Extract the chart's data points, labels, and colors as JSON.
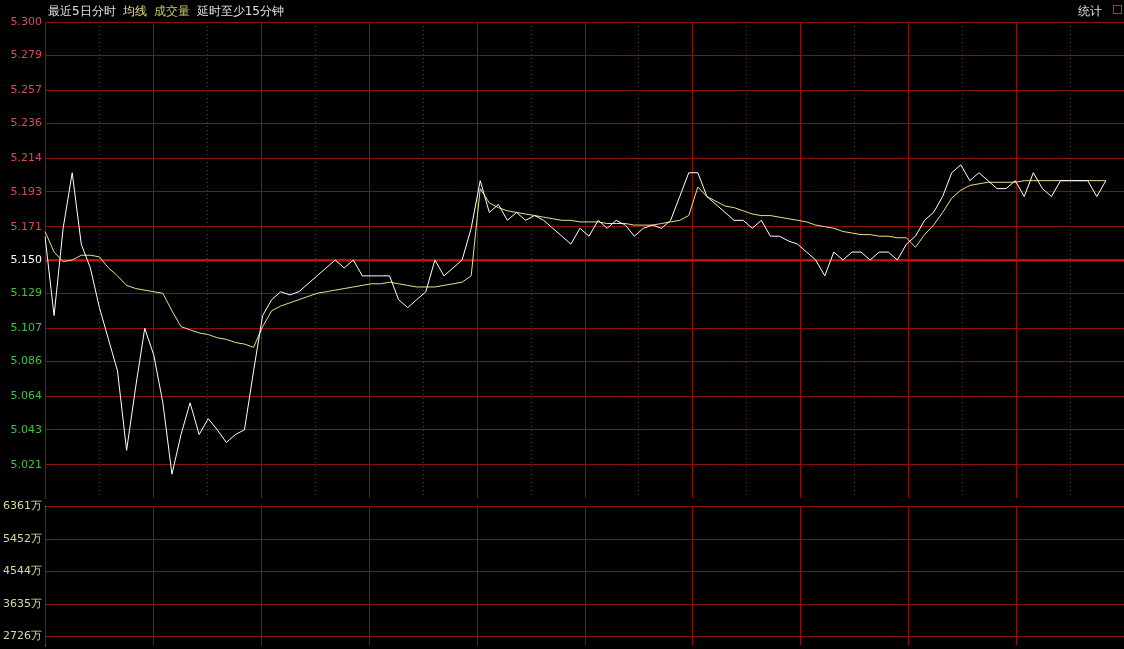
{
  "chart_data": [
    {
      "type": "line",
      "title": "最近5日分时",
      "categories": [
        null,
        null,
        null,
        null,
        null,
        null,
        null,
        null,
        null,
        null,
        null,
        null,
        null,
        null,
        null,
        null,
        null,
        null,
        null,
        null,
        null,
        null,
        null,
        null,
        null,
        null,
        null,
        null,
        null,
        null,
        null,
        null,
        null,
        null,
        null,
        null,
        null,
        null,
        null,
        null,
        null,
        null,
        null,
        null,
        null,
        null,
        null,
        null,
        null,
        null,
        null,
        null,
        null,
        null,
        null,
        null,
        null,
        null,
        null,
        null,
        null,
        null,
        null,
        null,
        null,
        null,
        null,
        null,
        null,
        null,
        null,
        null,
        null,
        null,
        null,
        null,
        null,
        null,
        null,
        null,
        null,
        null,
        null,
        null,
        null,
        null,
        null,
        null,
        null,
        null,
        null,
        null,
        null,
        null,
        null,
        null,
        null,
        null,
        null,
        null,
        null,
        null,
        null,
        null,
        null,
        null,
        null,
        null,
        null,
        null,
        null,
        null,
        null,
        null,
        null,
        null,
        null,
        null,
        null,
        null
      ],
      "series": [
        {
          "color": "#ffffff",
          "values": [
            5.165,
            5.115,
            5.17,
            5.205,
            5.16,
            5.145,
            5.12,
            5.1,
            5.08,
            5.03,
            5.07,
            5.107,
            5.09,
            5.06,
            5.015,
            5.04,
            5.06,
            5.04,
            5.05,
            5.043,
            5.035,
            5.04,
            5.043,
            5.08,
            5.115,
            5.125,
            5.13,
            5.128,
            5.13,
            5.135,
            5.14,
            5.145,
            5.15,
            5.145,
            5.15,
            5.14,
            5.14,
            5.14,
            5.14,
            5.125,
            5.12,
            5.125,
            5.13,
            5.15,
            5.14,
            5.145,
            5.15,
            5.17,
            5.2,
            5.18,
            5.185,
            5.175,
            5.18,
            5.175,
            5.178,
            5.175,
            5.17,
            5.165,
            5.16,
            5.17,
            5.165,
            5.175,
            5.17,
            5.175,
            5.172,
            5.165,
            5.17,
            5.172,
            5.17,
            5.175,
            5.19,
            5.205,
            5.205,
            5.19,
            5.185,
            5.18,
            5.175,
            5.175,
            5.17,
            5.175,
            5.165,
            5.165,
            5.162,
            5.16,
            5.155,
            5.15,
            5.14,
            5.155,
            5.15,
            5.155,
            5.155,
            5.15,
            5.155,
            5.155,
            5.15,
            5.16,
            5.165,
            5.175,
            5.18,
            5.19,
            5.205,
            5.21,
            5.2,
            5.205,
            5.2,
            5.195,
            5.195,
            5.2,
            5.19,
            5.205,
            5.195,
            5.19,
            5.2,
            5.2,
            5.2,
            5.2,
            5.19,
            5.2,
            null,
            null
          ]
        },
        {
          "name": "均线",
          "color": "#e8e08a",
          "values": [
            5.168,
            5.155,
            5.149,
            5.15,
            5.153,
            5.153,
            5.152,
            5.145,
            5.14,
            5.134,
            5.132,
            5.131,
            5.13,
            5.129,
            5.118,
            5.108,
            5.106,
            5.104,
            5.103,
            5.101,
            5.1,
            5.098,
            5.097,
            5.095,
            5.108,
            5.118,
            5.121,
            5.123,
            5.125,
            5.127,
            5.129,
            5.13,
            5.131,
            5.132,
            5.133,
            5.134,
            5.135,
            5.135,
            5.136,
            5.135,
            5.134,
            5.133,
            5.133,
            5.133,
            5.134,
            5.135,
            5.136,
            5.14,
            5.195,
            5.186,
            5.183,
            5.181,
            5.18,
            5.179,
            5.178,
            5.177,
            5.176,
            5.175,
            5.175,
            5.174,
            5.174,
            5.174,
            5.173,
            5.173,
            5.173,
            5.172,
            5.172,
            5.172,
            5.173,
            5.174,
            5.175,
            5.178,
            5.196,
            5.19,
            5.187,
            5.184,
            5.183,
            5.181,
            5.179,
            5.178,
            5.178,
            5.177,
            5.176,
            5.175,
            5.174,
            5.172,
            5.171,
            5.17,
            5.168,
            5.167,
            5.166,
            5.166,
            5.165,
            5.165,
            5.164,
            5.164,
            5.158,
            5.166,
            5.172,
            5.18,
            5.189,
            5.194,
            5.197,
            5.198,
            5.199,
            5.199,
            5.199,
            5.199,
            5.2,
            5.2,
            5.2,
            5.2,
            5.2,
            5.2,
            5.2,
            5.2,
            5.2,
            5.2,
            null,
            null
          ]
        }
      ],
      "ylim": [
        5.0,
        5.3
      ],
      "yticks": [
        5.021,
        5.043,
        5.064,
        5.086,
        5.107,
        5.129,
        {
          "value": 5.15,
          "label": "5.150"
        },
        5.171,
        5.193,
        5.214,
        5.236,
        5.257,
        5.279,
        {
          "value": 5.3,
          "label": "5.300"
        }
      ],
      "ref_lines": [
        {
          "axis": "y",
          "value": 5.15,
          "color": "#d01010"
        }
      ],
      "grid": true,
      "annotations": [
        "延时至少15分钟",
        "统计"
      ]
    },
    {
      "type": "bar",
      "categories": [
        null,
        null,
        null,
        null,
        null,
        null,
        null,
        null,
        null,
        null,
        null,
        null,
        null,
        null,
        null,
        null,
        null,
        null,
        null,
        null,
        null,
        null,
        null,
        null,
        null,
        null,
        null,
        null,
        null,
        null,
        null,
        null,
        null,
        null,
        null,
        null,
        null,
        null,
        null,
        null,
        null,
        null,
        null,
        null,
        null,
        null,
        null,
        null,
        null,
        null,
        null,
        null,
        null,
        null,
        null,
        null,
        null,
        null,
        null,
        null,
        null,
        null,
        null,
        null,
        null,
        null,
        null,
        null,
        null,
        null,
        null,
        null,
        null,
        null,
        null,
        null,
        null,
        null,
        null,
        null,
        null,
        null,
        null,
        null,
        null,
        null,
        null,
        null,
        null,
        null,
        null,
        null,
        null,
        null,
        null,
        null,
        null,
        null,
        null,
        null,
        null,
        null,
        null,
        null,
        null,
        null,
        null,
        null,
        null,
        null,
        null,
        null,
        null,
        null,
        null,
        null,
        null,
        null,
        null,
        null
      ],
      "annotations": [
        "成交量"
      ],
      "ylim": [
        2480,
        6361
      ],
      "yticks": [
        {
          "value": 2726,
          "label": "2726万"
        },
        {
          "value": 3635,
          "label": "3635万"
        },
        {
          "value": 4544,
          "label": "4544万"
        },
        {
          "value": 5452,
          "label": "5452万"
        },
        {
          "value": 6361,
          "label": "6361万"
        }
      ],
      "grid": true
    }
  ]
}
